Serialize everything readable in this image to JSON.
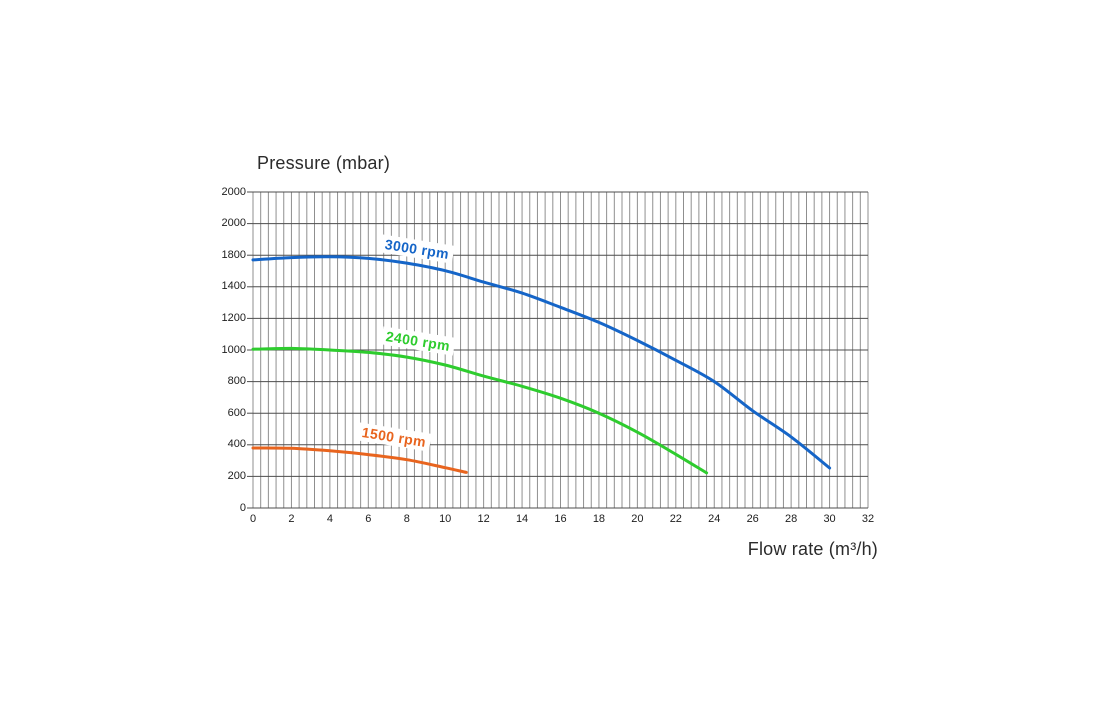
{
  "chart_data": {
    "type": "line",
    "title": "Pressure (mbar)",
    "xlabel": "Flow rate (m³/h)",
    "ylabel": "Pressure (mbar)",
    "xlim": [
      0,
      32
    ],
    "ylim": [
      0,
      2000
    ],
    "x_major_step": 2,
    "x_minor_step": 0.4,
    "grid": true,
    "x_tick_labels": [
      "0",
      "2",
      "4",
      "6",
      "8",
      "10",
      "12",
      "14",
      "16",
      "18",
      "20",
      "22",
      "24",
      "26",
      "28",
      "30",
      "32"
    ],
    "y_tick_labels_as_printed": [
      "2000",
      "2000",
      "1800",
      "1400",
      "1200",
      "1000",
      "800",
      "600",
      "400",
      "200",
      "0"
    ],
    "series": [
      {
        "name": "3000 rpm",
        "color": "#1565c8",
        "points": [
          [
            0,
            1570
          ],
          [
            2,
            1585
          ],
          [
            4,
            1590
          ],
          [
            6,
            1580
          ],
          [
            8,
            1550
          ],
          [
            10,
            1502
          ],
          [
            12,
            1430
          ],
          [
            14,
            1360
          ],
          [
            16,
            1270
          ],
          [
            18,
            1175
          ],
          [
            20,
            1060
          ],
          [
            22,
            935
          ],
          [
            24,
            800
          ],
          [
            26,
            615
          ],
          [
            28,
            450
          ],
          [
            30,
            253
          ]
        ]
      },
      {
        "name": "2400 rpm",
        "color": "#2ecc2e",
        "points": [
          [
            0,
            1005
          ],
          [
            2,
            1010
          ],
          [
            4,
            1000
          ],
          [
            6,
            985
          ],
          [
            8,
            955
          ],
          [
            10,
            905
          ],
          [
            12,
            835
          ],
          [
            14,
            770
          ],
          [
            16,
            695
          ],
          [
            18,
            600
          ],
          [
            20,
            480
          ],
          [
            22,
            340
          ],
          [
            23.6,
            222
          ]
        ]
      },
      {
        "name": "1500 rpm",
        "color": "#e8641e",
        "points": [
          [
            0,
            380
          ],
          [
            2,
            378
          ],
          [
            4,
            362
          ],
          [
            6,
            338
          ],
          [
            8,
            306
          ],
          [
            10,
            255
          ],
          [
            11.1,
            225
          ]
        ]
      }
    ]
  },
  "colors": {
    "grid_vertical": "#8f8f8f",
    "grid_horizontal": "#4d4d4d",
    "axis_text": "#1d1d1d",
    "title_text": "#2b2b2b"
  }
}
